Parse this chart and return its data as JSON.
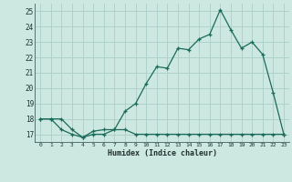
{
  "xlabel": "Humidex (Indice chaleur)",
  "bg_color": "#cce8e0",
  "grid_color": "#aacfc8",
  "line_color": "#1a6b5a",
  "xlim": [
    -0.5,
    23.5
  ],
  "ylim": [
    16.5,
    25.5
  ],
  "xticks": [
    0,
    1,
    2,
    3,
    4,
    5,
    6,
    7,
    8,
    9,
    10,
    11,
    12,
    13,
    14,
    15,
    16,
    17,
    18,
    19,
    20,
    21,
    22,
    23
  ],
  "yticks": [
    17,
    18,
    19,
    20,
    21,
    22,
    23,
    24,
    25
  ],
  "series1_x": [
    0,
    1,
    2,
    3,
    4,
    5,
    6,
    7,
    8,
    9,
    10,
    11,
    12,
    13,
    14,
    15,
    16,
    17,
    18,
    19,
    20,
    21,
    22,
    23
  ],
  "series1_y": [
    18.0,
    18.0,
    18.0,
    17.3,
    16.8,
    17.0,
    17.0,
    17.3,
    17.3,
    17.0,
    17.0,
    17.0,
    17.0,
    17.0,
    17.0,
    17.0,
    17.0,
    17.0,
    17.0,
    17.0,
    17.0,
    17.0,
    17.0,
    17.0
  ],
  "series2_x": [
    0,
    1,
    2,
    3,
    4,
    5,
    6,
    7,
    8,
    9,
    10,
    11,
    12,
    13,
    14,
    15,
    16,
    17,
    18,
    19,
    20,
    21,
    22,
    23
  ],
  "series2_y": [
    18.0,
    18.0,
    17.3,
    17.0,
    16.8,
    17.2,
    17.3,
    17.3,
    18.5,
    19.0,
    20.3,
    21.4,
    21.3,
    22.6,
    22.5,
    23.2,
    23.5,
    25.1,
    23.8,
    22.6,
    23.0,
    22.2,
    19.7,
    17.0
  ]
}
